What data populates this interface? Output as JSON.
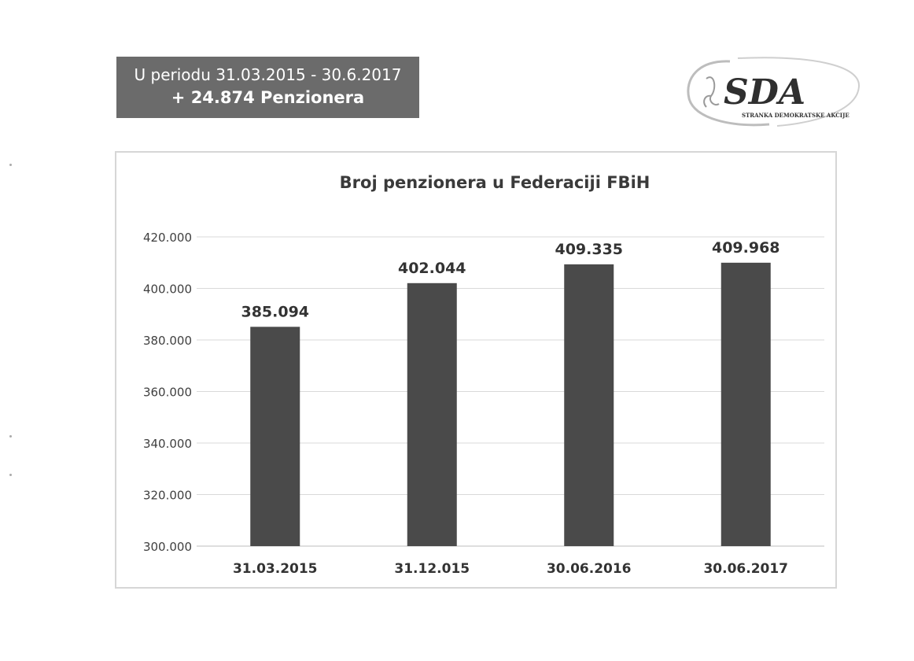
{
  "header": {
    "period_line": "U periodu 31.03.2015 - 30.6.2017",
    "gain_line": "+ 24.874 Penzionera"
  },
  "logo": {
    "name": "SDA",
    "subtitle": "STRANKA DEMOKRATSKE AKCIJE"
  },
  "colors": {
    "banner_bg": "#6b6b6b",
    "bar_fill": "#4a4a4a",
    "grid": "#d9d9d9"
  },
  "chart_data": {
    "type": "bar",
    "title": "Broj penzionera u Federaciji FBiH",
    "categories": [
      "31.03.2015",
      "31.12.015",
      "30.06.2016",
      "30.06.2017"
    ],
    "values": [
      385094,
      402044,
      409335,
      409968
    ],
    "value_labels": [
      "385.094",
      "402.044",
      "409.335",
      "409.968"
    ],
    "ylim": [
      300000,
      420000
    ],
    "yticks": [
      300000,
      320000,
      340000,
      360000,
      380000,
      400000,
      420000
    ],
    "ytick_labels": [
      "300.000",
      "320.000",
      "340.000",
      "360.000",
      "380.000",
      "400.000",
      "420.000"
    ],
    "xlabel": "",
    "ylabel": "",
    "grid": true,
    "legend": "none"
  }
}
